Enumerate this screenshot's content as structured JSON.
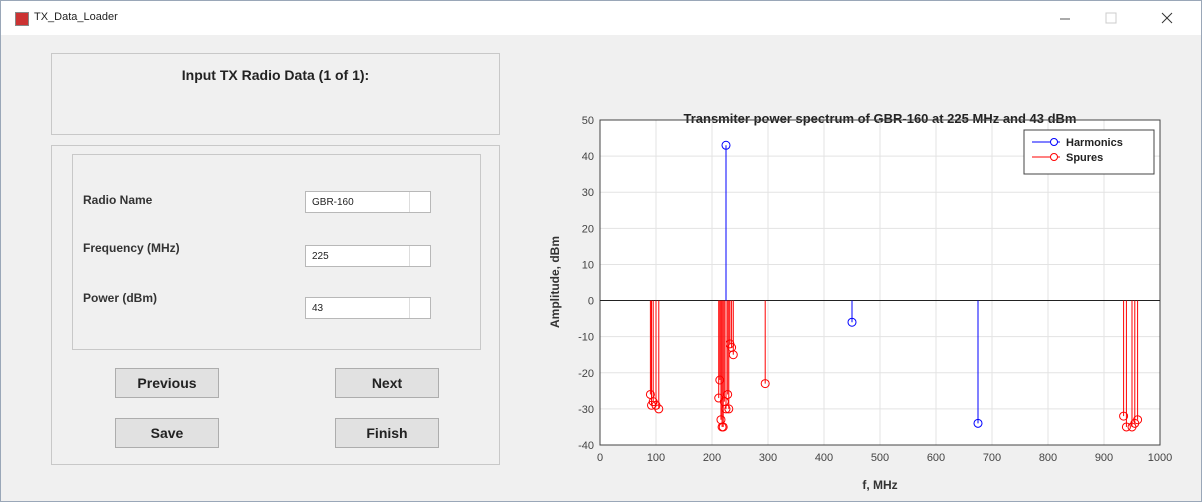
{
  "window": {
    "title": "TX_Data_Loader"
  },
  "panel": {
    "title": "Input TX Radio Data (1 of 1):"
  },
  "form": {
    "fields": [
      {
        "label": "Radio Name",
        "value": "GBR-160"
      },
      {
        "label": "Frequency (MHz)",
        "value": "225"
      },
      {
        "label": "Power (dBm)",
        "value": "43"
      }
    ]
  },
  "buttons": [
    "Previous",
    "Next",
    "Save",
    "Finish"
  ],
  "chart_data": {
    "type": "stem",
    "title": "Transmiter power spectrum of GBR-160 at 225 MHz and 43 dBm",
    "xlabel": "f, MHz",
    "ylabel": "Amplitude, dBm",
    "xlim": [
      0,
      1000
    ],
    "xticks": [
      0,
      100,
      200,
      300,
      400,
      500,
      600,
      700,
      800,
      900,
      1000
    ],
    "ylim": [
      -40,
      50
    ],
    "yticks": [
      -40,
      -30,
      -20,
      -10,
      0,
      10,
      20,
      30,
      40,
      50
    ],
    "grid": true,
    "legend": "upper right",
    "series": [
      {
        "name": "Harmonics",
        "color": "#0000ff",
        "x": [
          225,
          450,
          675
        ],
        "values": [
          43,
          -6,
          -34
        ]
      },
      {
        "name": "Spures",
        "color": "#ff0000",
        "x": [
          90,
          92,
          95,
          100,
          105,
          212,
          214,
          216,
          218,
          220,
          222,
          225,
          228,
          230,
          232,
          235,
          238,
          295,
          935,
          940,
          950,
          955,
          960
        ],
        "values": [
          -26,
          -29,
          -28,
          -29,
          -30,
          -27,
          -22,
          -33,
          -35,
          -35,
          -28,
          -30,
          -26,
          -30,
          -12,
          -13,
          -15,
          -23,
          -32,
          -35,
          -35,
          -34,
          -33
        ]
      }
    ]
  }
}
